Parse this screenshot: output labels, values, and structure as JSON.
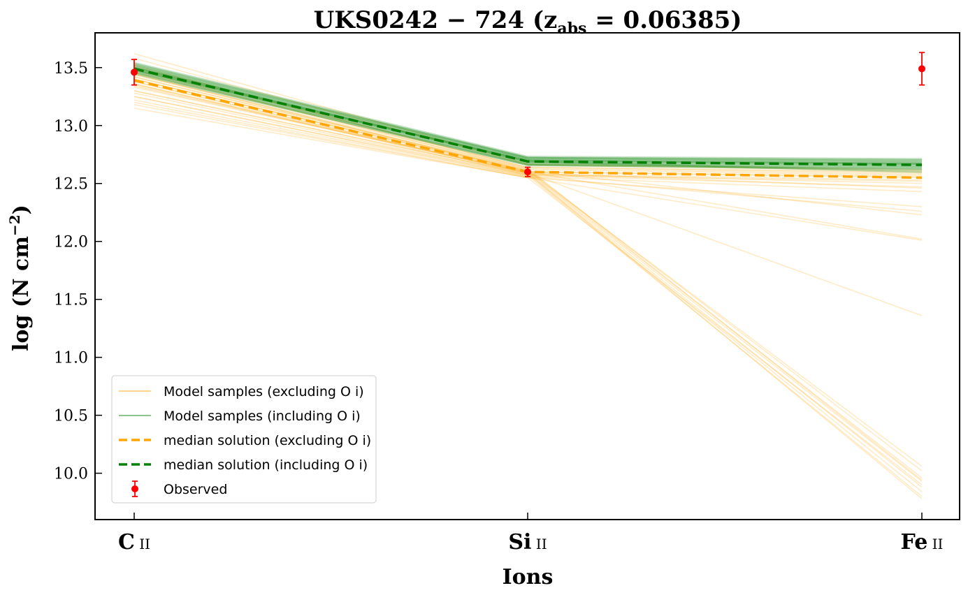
{
  "chart_data": {
    "type": "line",
    "title": "UKS0242 − 724 (z",
    "title_sub": "abs",
    "title_tail": " = 0.06385)",
    "xlabel": "Ions",
    "ylabel": "log (N cm",
    "ylabel_sup": "−2",
    "ylabel_tail": ")",
    "categories": [
      {
        "main": "C",
        "sub": " ii"
      },
      {
        "main": "Si",
        "sub": " ii"
      },
      {
        "main": "Fe",
        "sub": " ii"
      }
    ],
    "ylim": [
      9.6,
      13.8
    ],
    "yticks": [
      "10.0",
      "10.5",
      "11.0",
      "11.5",
      "12.0",
      "12.5",
      "13.0",
      "13.5"
    ],
    "ytick_values": [
      10.0,
      10.5,
      11.0,
      11.5,
      12.0,
      12.5,
      13.0,
      13.5
    ],
    "grid": false,
    "legend_position": "lower-left",
    "colors": {
      "orange": "#FFA500",
      "green": "#008000",
      "observed": "#FF0000"
    },
    "legend": [
      {
        "label": "Model samples (excluding O i)",
        "style": "thin-orange"
      },
      {
        "label": "Model samples (including O i)",
        "style": "thin-green"
      },
      {
        "label": "median solution (excluding O i)",
        "style": "dashed-orange"
      },
      {
        "label": "median solution (including O i)",
        "style": "dashed-green"
      },
      {
        "label": "Observed",
        "style": "errorbar-red"
      }
    ],
    "observed": {
      "values": [
        13.46,
        12.6,
        13.49
      ],
      "errors": [
        0.11,
        0.04,
        0.14
      ]
    },
    "median_excluding": [
      13.39,
      12.6,
      12.55
    ],
    "median_including": [
      13.49,
      12.69,
      12.66
    ],
    "samples_excluding": [
      [
        13.4,
        12.6,
        12.55
      ],
      [
        13.38,
        12.58,
        12.53
      ],
      [
        13.42,
        12.62,
        12.57
      ],
      [
        13.36,
        12.57,
        12.52
      ],
      [
        13.44,
        12.63,
        12.58
      ],
      [
        13.3,
        12.58,
        12.5
      ],
      [
        13.35,
        12.59,
        12.46
      ],
      [
        13.46,
        12.64,
        12.59
      ],
      [
        13.22,
        12.56,
        12.43
      ],
      [
        13.28,
        12.57,
        12.47
      ],
      [
        13.5,
        12.64,
        12.6
      ],
      [
        13.33,
        12.6,
        12.56
      ],
      [
        13.18,
        12.55,
        12.3
      ],
      [
        13.25,
        12.56,
        12.26
      ],
      [
        13.4,
        12.61,
        12.23
      ],
      [
        13.45,
        12.6,
        12.02
      ],
      [
        13.2,
        12.55,
        12.01
      ],
      [
        13.38,
        12.59,
        11.36
      ],
      [
        13.58,
        12.66,
        12.61
      ],
      [
        13.62,
        12.67,
        12.62
      ],
      [
        13.4,
        12.6,
        9.93
      ],
      [
        13.36,
        12.59,
        9.88
      ],
      [
        13.44,
        12.61,
        9.96
      ],
      [
        13.3,
        12.58,
        9.84
      ],
      [
        13.48,
        12.62,
        10.02
      ],
      [
        13.25,
        12.57,
        9.8
      ],
      [
        13.42,
        12.61,
        10.06
      ],
      [
        13.34,
        12.59,
        9.78
      ],
      [
        13.15,
        12.55,
        9.9
      ],
      [
        13.52,
        12.63,
        9.94
      ]
    ],
    "samples_including": [
      [
        13.49,
        12.69,
        12.66
      ],
      [
        13.5,
        12.7,
        12.67
      ],
      [
        13.48,
        12.68,
        12.65
      ],
      [
        13.51,
        12.71,
        12.68
      ],
      [
        13.47,
        12.67,
        12.64
      ],
      [
        13.52,
        12.72,
        12.7
      ],
      [
        13.46,
        12.66,
        12.62
      ],
      [
        13.53,
        12.72,
        12.69
      ],
      [
        13.45,
        12.66,
        12.63
      ],
      [
        13.54,
        12.73,
        12.71
      ],
      [
        13.5,
        12.69,
        12.6
      ],
      [
        13.48,
        12.7,
        12.67
      ]
    ]
  }
}
